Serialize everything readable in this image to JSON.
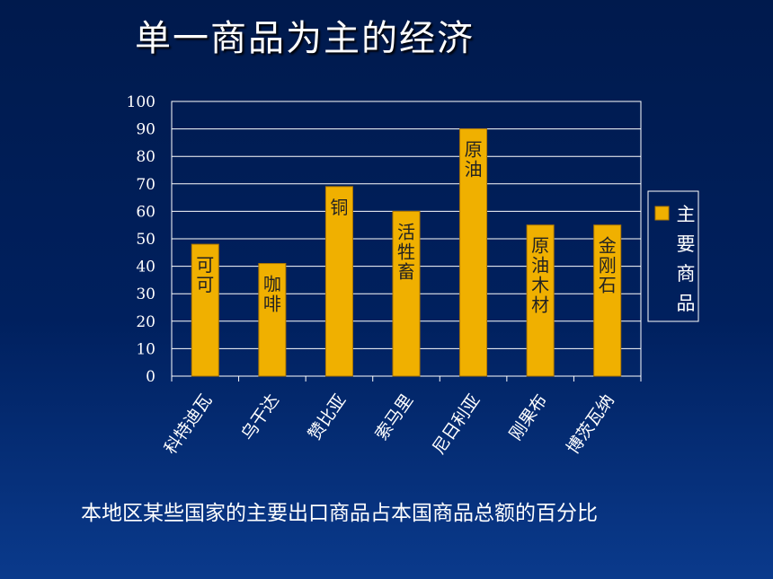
{
  "title": "单一商品为主的经济",
  "caption": "本地区某些国家的主要出口商品占本国商品总额的百分比",
  "chart_data": {
    "type": "bar",
    "categories": [
      "科特迪瓦",
      "乌干达",
      "赞比亚",
      "索马里",
      "尼日利亚",
      "刚果布",
      "博茨瓦纳"
    ],
    "series": [
      {
        "name": "主要商品",
        "values": [
          48,
          41,
          69,
          60,
          90,
          55,
          55
        ],
        "labels": [
          "可可",
          "咖啡",
          "铜",
          "活牲畜",
          "原油",
          "原油木材",
          "金刚石"
        ]
      }
    ],
    "ylim": [
      0,
      100
    ],
    "yticks": [
      "0",
      "10",
      "20",
      "30",
      "40",
      "50",
      "60",
      "70",
      "80",
      "90",
      "100"
    ],
    "grid": true,
    "legend_position": "right",
    "colors": {
      "bar": "#f0b000",
      "bar_edge": "#b07800",
      "label": "#222222",
      "axis": "#ffffff"
    }
  }
}
